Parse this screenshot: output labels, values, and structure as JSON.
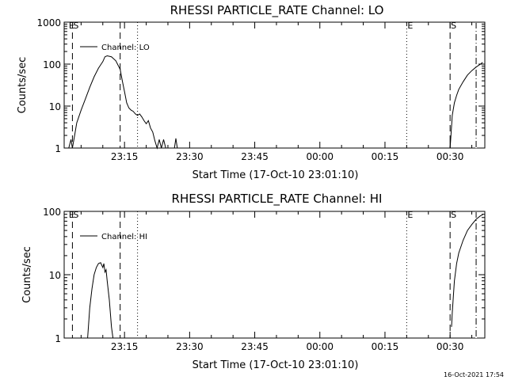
{
  "timestamp": "16-Oct-2021 17:54",
  "chart_data": [
    {
      "type": "line",
      "title": "RHESSI PARTICLE_RATE Channel: LO",
      "xlabel": "Start Time (17-Oct-10 23:01:10)",
      "ylabel": "Counts/sec",
      "yscale": "log",
      "ylim": [
        1,
        1000
      ],
      "xlim_minutes_after_23_00": [
        1.1,
        98.0
      ],
      "x_ticks": [
        "23:15",
        "23:30",
        "23:45",
        "00:00",
        "00:15",
        "00:30"
      ],
      "y_ticks": [
        "1",
        "10",
        "100",
        "1000"
      ],
      "legend": "Channel: LO",
      "legend_position": "top-left",
      "markers": {
        "dashed": [
          "23:03",
          "23:14",
          "00:30",
          "00:36"
        ],
        "dotted": [
          "23:18",
          "00:20"
        ],
        "labels": [
          {
            "text": "E",
            "time": "23:02"
          },
          {
            "text": "S",
            "time": "23:03"
          },
          {
            "text": "E",
            "time": "00:20"
          },
          {
            "text": "S",
            "time": "00:30"
          }
        ]
      },
      "series": [
        {
          "name": "Channel: LO",
          "segments": [
            [
              [
                "23:02:10",
                1.0
              ],
              [
                "23:02:40",
                1.6
              ],
              [
                "23:03:00",
                1.0
              ],
              [
                "23:03:30",
                2.0
              ],
              [
                "23:04:00",
                4.0
              ],
              [
                "23:05:00",
                8.0
              ],
              [
                "23:06:00",
                15
              ],
              [
                "23:07:00",
                28
              ],
              [
                "23:08:00",
                50
              ],
              [
                "23:09:00",
                80
              ],
              [
                "23:10:00",
                115
              ],
              [
                "23:10:30",
                150
              ],
              [
                "23:11:00",
                158
              ],
              [
                "23:12:00",
                150
              ],
              [
                "23:13:00",
                120
              ],
              [
                "23:14:00",
                75
              ],
              [
                "23:14:30",
                40
              ],
              [
                "23:15:00",
                22
              ],
              [
                "23:15:30",
                12
              ],
              [
                "23:16:00",
                9
              ],
              [
                "23:16:30",
                8
              ],
              [
                "23:17:00",
                7.5
              ],
              [
                "23:17:30",
                6.5
              ],
              [
                "23:18:00",
                6
              ],
              [
                "23:18:30",
                6.5
              ],
              [
                "23:19:00",
                5.5
              ],
              [
                "23:19:30",
                4.5
              ],
              [
                "23:20:00",
                3.8
              ],
              [
                "23:20:30",
                4.5
              ],
              [
                "23:21:00",
                3.0
              ],
              [
                "23:21:30",
                2.4
              ],
              [
                "23:22:00",
                1.5
              ],
              [
                "23:22:30",
                1.0
              ],
              [
                "23:23:00",
                1.6
              ],
              [
                "23:23:30",
                1.0
              ],
              [
                "23:24:00",
                1.6
              ],
              [
                "23:24:30",
                1.0
              ]
            ],
            [
              [
                "23:26:30",
                1.0
              ],
              [
                "23:26:50",
                1.7
              ],
              [
                "23:27:10",
                1.0
              ]
            ],
            [
              [
                "00:30:00",
                1.0
              ],
              [
                "00:30:30",
                6.0
              ],
              [
                "00:31:00",
                12
              ],
              [
                "00:31:30",
                18
              ],
              [
                "00:32:00",
                25
              ],
              [
                "00:33:00",
                38
              ],
              [
                "00:34:00",
                55
              ],
              [
                "00:35:00",
                70
              ],
              [
                "00:36:00",
                85
              ],
              [
                "00:37:00",
                100
              ],
              [
                "00:37:30",
                110
              ]
            ]
          ]
        }
      ]
    },
    {
      "type": "line",
      "title": "RHESSI PARTICLE_RATE Channel: HI",
      "xlabel": "Start Time (17-Oct-10 23:01:10)",
      "ylabel": "Counts/sec",
      "yscale": "log",
      "ylim": [
        1,
        100
      ],
      "xlim_minutes_after_23_00": [
        1.1,
        98.0
      ],
      "x_ticks": [
        "23:15",
        "23:30",
        "23:45",
        "00:00",
        "00:15",
        "00:30"
      ],
      "y_ticks": [
        "1",
        "10",
        "100"
      ],
      "legend": "Channel: HI",
      "legend_position": "top-left",
      "markers": {
        "dashed": [
          "23:03",
          "23:14",
          "00:30",
          "00:36"
        ],
        "dotted": [
          "23:18",
          "00:20"
        ],
        "labels": [
          {
            "text": "E",
            "time": "23:02"
          },
          {
            "text": "S",
            "time": "23:03"
          },
          {
            "text": "E",
            "time": "00:20"
          },
          {
            "text": "S",
            "time": "00:30"
          }
        ]
      },
      "series": [
        {
          "name": "Channel: HI",
          "segments": [
            [
              [
                "23:06:30",
                1.0
              ],
              [
                "23:07:00",
                3.0
              ],
              [
                "23:07:30",
                6.0
              ],
              [
                "23:08:00",
                10
              ],
              [
                "23:08:30",
                13
              ],
              [
                "23:09:00",
                15
              ],
              [
                "23:09:30",
                15.5
              ],
              [
                "23:10:00",
                13
              ],
              [
                "23:10:15",
                15
              ],
              [
                "23:10:30",
                11
              ],
              [
                "23:10:45",
                12
              ],
              [
                "23:11:00",
                8
              ],
              [
                "23:11:30",
                4
              ],
              [
                "23:12:00",
                1.5
              ],
              [
                "23:12:20",
                1.0
              ]
            ],
            [
              [
                "00:30:20",
                1.5
              ],
              [
                "00:30:30",
                2.5
              ],
              [
                "00:31:00",
                8
              ],
              [
                "00:31:30",
                15
              ],
              [
                "00:32:00",
                22
              ],
              [
                "00:33:00",
                35
              ],
              [
                "00:34:00",
                50
              ],
              [
                "00:35:00",
                62
              ],
              [
                "00:36:00",
                75
              ],
              [
                "00:37:00",
                85
              ],
              [
                "00:37:30",
                88
              ]
            ]
          ]
        }
      ]
    }
  ]
}
